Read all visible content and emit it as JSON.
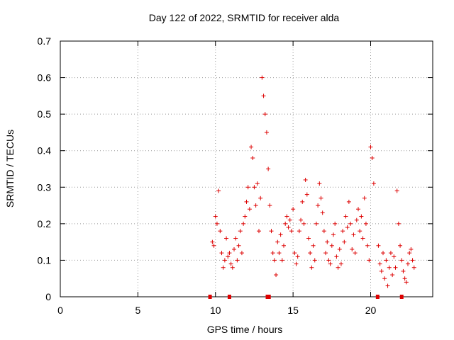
{
  "chart_data": {
    "type": "scatter",
    "title": "Day 122 of 2022, SRMTID for receiver alda",
    "xlabel": "GPS time / hours",
    "ylabel": "SRMTID / TECUs",
    "xlim": [
      0,
      24
    ],
    "ylim": [
      0,
      0.7
    ],
    "xticks": [
      0,
      5,
      10,
      15,
      20
    ],
    "yticks": [
      0,
      0.1,
      0.2,
      0.3,
      0.4,
      0.5,
      0.6,
      0.7
    ],
    "grid": true,
    "marker": "+",
    "color": "#dd0000",
    "series": [
      {
        "name": "SRMTID",
        "x": [
          9.8,
          9.9,
          10.0,
          10.1,
          10.2,
          10.3,
          10.4,
          10.5,
          10.6,
          10.7,
          10.8,
          10.9,
          11.0,
          11.1,
          11.2,
          11.3,
          11.4,
          11.5,
          11.6,
          11.7,
          11.8,
          11.9,
          12.0,
          12.1,
          12.2,
          12.3,
          12.4,
          12.5,
          12.6,
          12.7,
          12.8,
          12.9,
          13.0,
          13.1,
          13.2,
          13.3,
          13.4,
          13.5,
          13.6,
          13.7,
          13.8,
          13.9,
          14.0,
          14.1,
          14.2,
          14.3,
          14.4,
          14.5,
          14.6,
          14.7,
          14.8,
          14.9,
          15.0,
          15.1,
          15.2,
          15.3,
          15.4,
          15.5,
          15.6,
          15.7,
          15.8,
          15.9,
          16.0,
          16.1,
          16.2,
          16.3,
          16.4,
          16.5,
          16.6,
          16.7,
          16.8,
          16.9,
          17.0,
          17.1,
          17.2,
          17.3,
          17.4,
          17.5,
          17.6,
          17.7,
          17.8,
          17.9,
          18.0,
          18.1,
          18.2,
          18.3,
          18.4,
          18.5,
          18.6,
          18.7,
          18.8,
          18.9,
          19.0,
          19.1,
          19.2,
          19.3,
          19.4,
          19.5,
          19.6,
          19.7,
          19.8,
          19.9,
          20.0,
          20.1,
          20.2,
          20.5,
          20.6,
          20.7,
          20.8,
          20.9,
          21.0,
          21.1,
          21.2,
          21.3,
          21.4,
          21.5,
          21.6,
          21.7,
          21.8,
          21.9,
          22.0,
          22.1,
          22.2,
          22.3,
          22.4,
          22.5,
          22.6,
          22.7,
          22.8
        ],
        "y": [
          0.15,
          0.14,
          0.22,
          0.2,
          0.29,
          0.18,
          0.12,
          0.08,
          0.1,
          0.16,
          0.11,
          0.12,
          0.09,
          0.08,
          0.13,
          0.16,
          0.1,
          0.14,
          0.18,
          0.12,
          0.2,
          0.22,
          0.26,
          0.3,
          0.24,
          0.41,
          0.38,
          0.3,
          0.25,
          0.31,
          0.18,
          0.27,
          0.6,
          0.55,
          0.5,
          0.45,
          0.35,
          0.25,
          0.18,
          0.12,
          0.1,
          0.06,
          0.15,
          0.12,
          0.17,
          0.1,
          0.14,
          0.2,
          0.22,
          0.19,
          0.21,
          0.18,
          0.24,
          0.12,
          0.09,
          0.11,
          0.18,
          0.21,
          0.26,
          0.2,
          0.32,
          0.28,
          0.16,
          0.12,
          0.08,
          0.14,
          0.1,
          0.2,
          0.25,
          0.31,
          0.27,
          0.23,
          0.18,
          0.12,
          0.15,
          0.1,
          0.09,
          0.14,
          0.17,
          0.2,
          0.11,
          0.08,
          0.13,
          0.09,
          0.18,
          0.15,
          0.22,
          0.19,
          0.26,
          0.2,
          0.13,
          0.17,
          0.12,
          0.21,
          0.24,
          0.18,
          0.22,
          0.16,
          0.27,
          0.2,
          0.14,
          0.1,
          0.41,
          0.38,
          0.31,
          0.14,
          0.09,
          0.07,
          0.12,
          0.05,
          0.1,
          0.03,
          0.08,
          0.12,
          0.06,
          0.11,
          0.08,
          0.29,
          0.2,
          0.14,
          0.1,
          0.07,
          0.05,
          0.04,
          0.09,
          0.12,
          0.13,
          0.1,
          0.08
        ]
      }
    ],
    "gap_markers_x": [
      9.65,
      10.9,
      13.35,
      13.45,
      20.45,
      22.0
    ]
  }
}
